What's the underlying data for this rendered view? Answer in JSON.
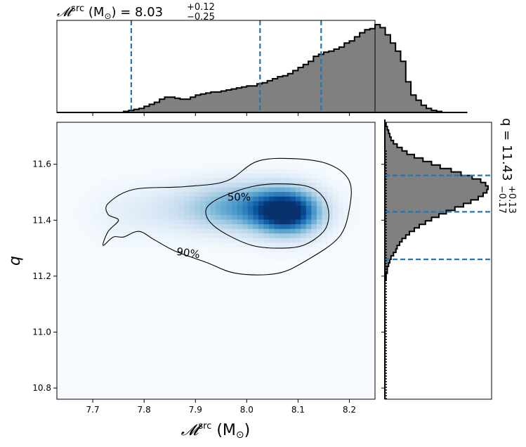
{
  "chart_data": {
    "type": "heatmap",
    "description_free": true,
    "x_label_main": "𝓜",
    "x_label_sup": "src",
    "x_label_unit": " (M",
    "x_label_sun": "⊙",
    "x_label_close": ")",
    "y_label": "q",
    "x_range": [
      7.63,
      8.25
    ],
    "y_range": [
      10.76,
      11.75
    ],
    "x_ticks": [
      "7.7",
      "7.8",
      "7.9",
      "8.0",
      "8.1",
      "8.2"
    ],
    "y_ticks": [
      "10.8",
      "11.0",
      "11.2",
      "11.4",
      "11.6"
    ],
    "top_title": {
      "prefix": "𝓜",
      "sup": "src",
      "unit": " (M",
      "sun": "⊙",
      "close": ") = 8.03",
      "plus": "+0.12",
      "minus": "−0.25"
    },
    "right_title": {
      "prefix": "q = 11.43",
      "plus": "+0.13",
      "minus": "−0.17"
    },
    "x_quantiles": [
      7.775,
      8.026,
      8.145
    ],
    "y_quantiles": [
      11.26,
      11.43,
      11.56
    ],
    "contour_labels": [
      "50%",
      "90%"
    ],
    "peak": {
      "x": 8.08,
      "y": 11.43
    },
    "hist_x": {
      "edges_start": 7.63,
      "bin_width": 0.01,
      "counts": [
        0,
        0,
        0,
        0,
        0,
        0,
        0,
        0,
        0,
        0,
        0,
        0,
        0,
        1,
        2,
        3,
        4,
        6,
        8,
        10,
        13,
        15,
        15,
        14,
        13,
        13,
        15,
        17,
        18,
        19,
        20,
        20,
        21,
        22,
        23,
        24,
        25,
        26,
        26,
        28,
        29,
        31,
        33,
        35,
        36,
        38,
        41,
        44,
        47,
        50,
        55,
        57,
        59,
        60,
        62,
        64,
        68,
        70,
        74,
        78,
        81,
        82,
        86,
        83,
        76,
        68,
        60,
        50,
        30,
        17,
        12,
        7,
        4,
        2,
        1,
        0,
        0,
        0,
        0,
        0
      ]
    },
    "hist_y": {
      "edges_start": 10.76,
      "bin_width": 0.0125,
      "counts": [
        0,
        0,
        0,
        0,
        0,
        0,
        0,
        0,
        0,
        0,
        0,
        0,
        0,
        0,
        0,
        0,
        0,
        0,
        0,
        0,
        0,
        0,
        0,
        0,
        0,
        0,
        0,
        0,
        0,
        0,
        0,
        0,
        0,
        0,
        1,
        1,
        2,
        2,
        3,
        4,
        5,
        7,
        9,
        10,
        12,
        14,
        17,
        20,
        24,
        28,
        33,
        38,
        44,
        50,
        57,
        64,
        70,
        76,
        80,
        83,
        84,
        82,
        78,
        71,
        62,
        54,
        45,
        38,
        31,
        24,
        18,
        14,
        10,
        7,
        5,
        4,
        3,
        2,
        1,
        0
      ]
    }
  }
}
